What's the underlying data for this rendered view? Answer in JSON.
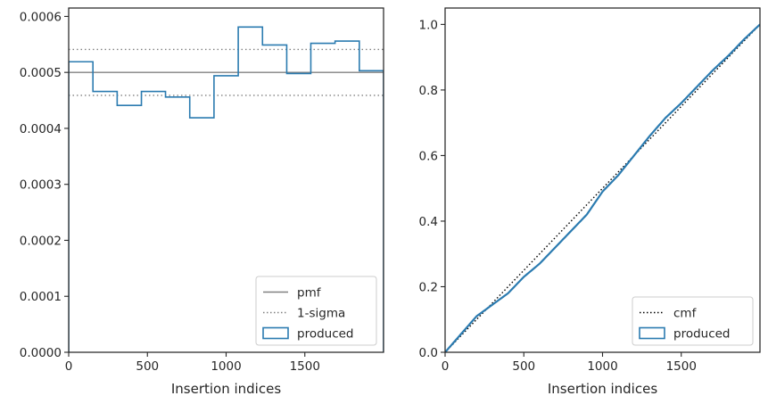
{
  "chart_data": [
    {
      "type": "histogram-step",
      "xlabel": "Insertion indices",
      "ylabel": "",
      "xlim": [
        0,
        2000
      ],
      "ylim": [
        0,
        0.000615
      ],
      "xticks": [
        0,
        500,
        1000,
        1500
      ],
      "xtick_labels": [
        "0",
        "500",
        "1000",
        "1500"
      ],
      "yticks": [
        0,
        0.0001,
        0.0002,
        0.0003,
        0.0004,
        0.0005,
        0.0006
      ],
      "ytick_labels": [
        "0.0000",
        "0.0001",
        "0.0002",
        "0.0003",
        "0.0004",
        "0.0005",
        "0.0006"
      ],
      "grid": false,
      "legend_position": "lower-right",
      "reference_lines": [
        {
          "name": "pmf",
          "y": 0.0005,
          "style": "solid",
          "color": "#808080"
        },
        {
          "name": "1-sigma",
          "y": 0.000541,
          "style": "dotted",
          "color": "#808080"
        },
        {
          "name": "1-sigma",
          "y": 0.000459,
          "style": "dotted",
          "color": "#808080"
        }
      ],
      "series": [
        {
          "name": "produced",
          "color": "#2b7bb0",
          "bin_edges": [
            0,
            154,
            308,
            462,
            615,
            769,
            923,
            1077,
            1231,
            1385,
            1538,
            1692,
            1846,
            2000
          ],
          "values": [
            0.000519,
            0.000466,
            0.000441,
            0.000466,
            0.000456,
            0.000419,
            0.000494,
            0.000581,
            0.000549,
            0.000498,
            0.000552,
            0.000556,
            0.000503
          ]
        }
      ],
      "legend": [
        {
          "label": "pmf",
          "kind": "solid-line"
        },
        {
          "label": "1-sigma",
          "kind": "dotted-line"
        },
        {
          "label": "produced",
          "kind": "box"
        }
      ]
    },
    {
      "type": "line",
      "xlabel": "Insertion indices",
      "ylabel": "",
      "xlim": [
        0,
        2000
      ],
      "ylim": [
        0,
        1.05
      ],
      "xticks": [
        0,
        500,
        1000,
        1500
      ],
      "xtick_labels": [
        "0",
        "500",
        "1000",
        "1500"
      ],
      "yticks": [
        0,
        0.2,
        0.4,
        0.6,
        0.8,
        1.0
      ],
      "ytick_labels": [
        "0.0",
        "0.2",
        "0.4",
        "0.6",
        "0.8",
        "1.0"
      ],
      "grid": false,
      "legend_position": "lower-right",
      "series": [
        {
          "name": "cmf",
          "style": "dotted",
          "color": "#000000",
          "x": [
            0,
            2000
          ],
          "y": [
            0,
            1.0
          ]
        },
        {
          "name": "produced",
          "style": "solid",
          "color": "#2b7bb0",
          "x": [
            0,
            100,
            200,
            300,
            400,
            500,
            600,
            700,
            800,
            900,
            1000,
            1100,
            1200,
            1300,
            1400,
            1500,
            1600,
            1700,
            1800,
            1900,
            2000
          ],
          "y": [
            0,
            0.055,
            0.11,
            0.145,
            0.18,
            0.23,
            0.27,
            0.32,
            0.37,
            0.42,
            0.49,
            0.54,
            0.6,
            0.66,
            0.715,
            0.76,
            0.81,
            0.86,
            0.905,
            0.955,
            1.0
          ]
        }
      ],
      "legend": [
        {
          "label": "cmf",
          "kind": "dotted-line"
        },
        {
          "label": "produced",
          "kind": "box"
        }
      ]
    }
  ]
}
